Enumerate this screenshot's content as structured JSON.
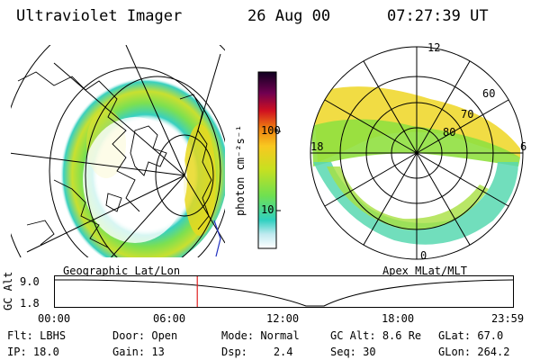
{
  "header": {
    "instrument": "Ultraviolet Imager",
    "date": "26 Aug 00",
    "time": "07:27:39 UT"
  },
  "colorbar": {
    "unit_label": "photon cm⁻²s⁻¹",
    "ticks": [
      "100",
      "10"
    ]
  },
  "geo_panel": {
    "label": "Geographic Lat/Lon"
  },
  "polar_panel": {
    "label": "Apex MLat/MLT",
    "mlt_labels": [
      "12",
      "18",
      "6",
      "0"
    ],
    "lat_labels": [
      "60",
      "70",
      "80"
    ]
  },
  "altitude_plot": {
    "ylabel": "GC Alt",
    "yticks": [
      "9.0",
      "1.8"
    ],
    "xticks": [
      "00:00",
      "06:00",
      "12:00",
      "18:00",
      "23:59"
    ],
    "current_time_hours": 7.46
  },
  "info": {
    "flt": {
      "label": "Flt:",
      "value": "LBHS"
    },
    "door": {
      "label": "Door:",
      "value": "Open"
    },
    "mode": {
      "label": "Mode:",
      "value": "Normal"
    },
    "gcalt": {
      "label": "GC Alt:",
      "value": "8.6 Re"
    },
    "glat": {
      "label": "GLat:",
      "value": "67.0"
    },
    "ip": {
      "label": "IP:",
      "value": "18.0"
    },
    "gain": {
      "label": "Gain:",
      "value": "13"
    },
    "dsp": {
      "label": "Dsp:",
      "value": "2.4"
    },
    "seq": {
      "label": "Seq:",
      "value": "30"
    },
    "glon": {
      "label": "GLon:",
      "value": "264.2"
    }
  }
}
